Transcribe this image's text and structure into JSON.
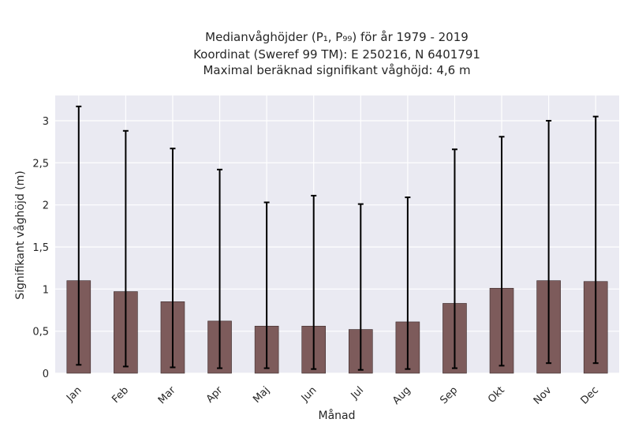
{
  "chart_data": {
    "type": "bar",
    "title_lines": [
      "Medianvåghöjder (P₁, P₉₉) för år 1979 - 2019",
      "Koordinat (Sweref 99 TM): E 250216, N 6401791",
      "Maximal beräknad signifikant våghöjd: 4,6 m"
    ],
    "xlabel": "Månad",
    "ylabel": "Signifikant våghöjd (m)",
    "categories": [
      "Jan",
      "Feb",
      "Mar",
      "Apr",
      "Maj",
      "Jun",
      "Jul",
      "Aug",
      "Sep",
      "Okt",
      "Nov",
      "Dec"
    ],
    "values": [
      1.1,
      0.97,
      0.85,
      0.62,
      0.56,
      0.56,
      0.52,
      0.61,
      0.83,
      1.01,
      1.1,
      1.09
    ],
    "p1": [
      0.1,
      0.08,
      0.07,
      0.06,
      0.06,
      0.05,
      0.04,
      0.05,
      0.06,
      0.09,
      0.12,
      0.12
    ],
    "p99": [
      3.17,
      2.88,
      2.67,
      2.42,
      2.03,
      2.11,
      2.01,
      2.09,
      2.66,
      2.81,
      3.0,
      3.05
    ],
    "yticks": [
      "0",
      "0,5",
      "1",
      "1,5",
      "2",
      "2,5",
      "3"
    ],
    "ytick_values": [
      0,
      0.5,
      1,
      1.5,
      2,
      2.5,
      3
    ],
    "ylim": [
      0,
      3.3
    ],
    "grid": true,
    "colors": {
      "bar": "#7d5b5b",
      "bar_edge": "#3a2a2a",
      "errorbar": "#000000",
      "plot_background": "#eaeaf2",
      "grid": "#ffffff"
    }
  }
}
